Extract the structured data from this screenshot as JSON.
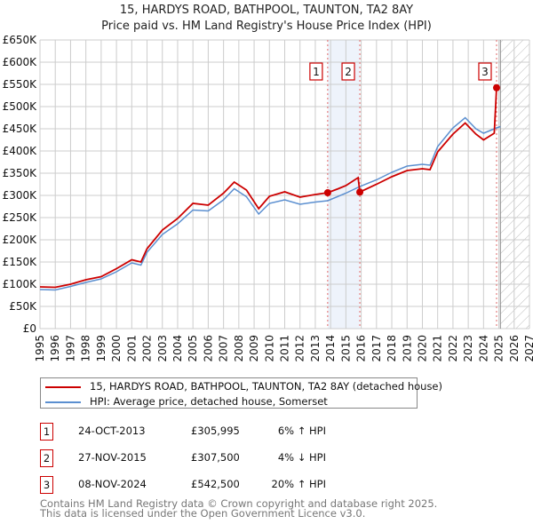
{
  "title": "15, HARDYS ROAD, BATHPOOL, TAUNTON, TA2 8AY",
  "subtitle": "Price paid vs. HM Land Registry's House Price Index (HPI)",
  "colors": {
    "red": "#cc0000",
    "blue": "#5b8fd0",
    "shade": "#eef3fb"
  },
  "chart_data": {
    "type": "line",
    "xlim": [
      1995,
      2027
    ],
    "ylim": [
      0,
      650000
    ],
    "yticks": [
      0,
      50000,
      100000,
      150000,
      200000,
      250000,
      300000,
      350000,
      400000,
      450000,
      500000,
      550000,
      600000,
      650000
    ],
    "ytick_labels": [
      "£0",
      "£50K",
      "£100K",
      "£150K",
      "£200K",
      "£250K",
      "£300K",
      "£350K",
      "£400K",
      "£450K",
      "£500K",
      "£550K",
      "£600K",
      "£650K"
    ],
    "xtick_labels": [
      "1995",
      "1996",
      "1997",
      "1998",
      "1999",
      "2000",
      "2001",
      "2002",
      "2003",
      "2004",
      "2005",
      "2006",
      "2007",
      "2008",
      "2009",
      "2010",
      "2011",
      "2012",
      "2013",
      "2014",
      "2015",
      "2016",
      "2017",
      "2018",
      "2019",
      "2020",
      "2021",
      "2022",
      "2023",
      "2024",
      "2025",
      "2026",
      "2027"
    ],
    "grid": true,
    "shaded_range": [
      2013.81,
      2015.91
    ],
    "forecast_hatch_from": 2025.1,
    "series": [
      {
        "name": "15, HARDYS ROAD, BATHPOOL, TAUNTON, TA2 8AY (detached house)",
        "color": "#cc0000",
        "x": [
          1995,
          1996,
          1997,
          1998,
          1999,
          2000,
          2001,
          2001.6,
          2002,
          2003,
          2004,
          2005,
          2006,
          2007,
          2007.7,
          2008.5,
          2009.3,
          2010,
          2011,
          2012,
          2013,
          2013.81,
          2014.5,
          2015,
          2015.8,
          2015.91,
          2017,
          2018,
          2019,
          2020,
          2020.5,
          2021,
          2022,
          2022.8,
          2023.5,
          2024,
          2024.7,
          2024.85
        ],
        "y": [
          94000,
          93000,
          100000,
          110000,
          117000,
          135000,
          155000,
          150000,
          180000,
          222000,
          248000,
          282000,
          278000,
          305000,
          330000,
          312000,
          270000,
          298000,
          308000,
          296000,
          302000,
          305995,
          315000,
          322000,
          340000,
          307500,
          325000,
          342000,
          356000,
          360000,
          358000,
          398000,
          438000,
          463000,
          438000,
          425000,
          440000,
          542500
        ]
      },
      {
        "name": "HPI: Average price, detached house, Somerset",
        "color": "#5b8fd0",
        "x": [
          1995,
          1996,
          1997,
          1998,
          1999,
          2000,
          2001,
          2001.6,
          2002,
          2003,
          2004,
          2005,
          2006,
          2007,
          2007.7,
          2008.5,
          2009.3,
          2010,
          2011,
          2012,
          2013,
          2013.81,
          2015,
          2015.91,
          2017,
          2018,
          2019,
          2020,
          2020.5,
          2021,
          2022,
          2022.8,
          2023.5,
          2024,
          2024.85,
          2025.1
        ],
        "y": [
          88000,
          87000,
          95000,
          104000,
          112000,
          128000,
          148000,
          143000,
          172000,
          212000,
          236000,
          267000,
          265000,
          290000,
          315000,
          297000,
          258000,
          282000,
          290000,
          280000,
          285000,
          288000,
          305000,
          320000,
          335000,
          352000,
          366000,
          370000,
          368000,
          410000,
          452000,
          475000,
          450000,
          440000,
          452000,
          455000
        ]
      }
    ],
    "annotations": [
      {
        "label": "1",
        "x": 2013.81,
        "y": 305995
      },
      {
        "label": "2",
        "x": 2015.91,
        "y": 307500
      },
      {
        "label": "3",
        "x": 2024.85,
        "y": 542500
      }
    ]
  },
  "legend": {
    "items": [
      {
        "label": "15, HARDYS ROAD, BATHPOOL, TAUNTON, TA2 8AY (detached house)"
      },
      {
        "label": "HPI: Average price, detached house, Somerset"
      }
    ]
  },
  "transactions": [
    {
      "num": "1",
      "date": "24-OCT-2013",
      "price": "£305,995",
      "hpi": "6% ↑ HPI"
    },
    {
      "num": "2",
      "date": "27-NOV-2015",
      "price": "£307,500",
      "hpi": "4% ↓ HPI"
    },
    {
      "num": "3",
      "date": "08-NOV-2024",
      "price": "£542,500",
      "hpi": "20% ↑ HPI"
    }
  ],
  "footer": {
    "line1": "Contains HM Land Registry data © Crown copyright and database right 2025.",
    "line2": "This data is licensed under the Open Government Licence v3.0."
  }
}
